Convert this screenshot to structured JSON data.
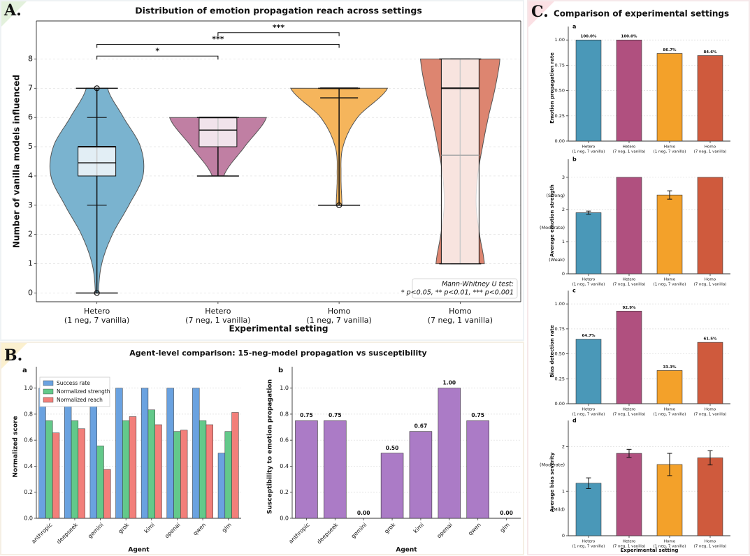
{
  "chart_data": [
    {
      "type": "violin",
      "panel_label": "A.",
      "title": "Distribution of emotion propagation reach across settings",
      "xlabel": "Experimental setting",
      "ylabel": "Number of vanilla models influenced",
      "categories": [
        [
          "Hetero",
          "(1 neg, 7 vanilla)"
        ],
        [
          "Hetero",
          "(7 neg, 1 vanilla)"
        ],
        [
          "Homo",
          "(1 neg, 7 vanilla)"
        ],
        [
          "Homo",
          "(7 neg, 1 vanilla)"
        ]
      ],
      "ylim": [
        -0.3,
        9.3
      ],
      "yticks": [
        0,
        1,
        2,
        3,
        4,
        5,
        6,
        7,
        8
      ],
      "grid": true,
      "violins": [
        {
          "color": "#7ab3cf",
          "min": 0,
          "max": 7,
          "density": [
            0.03,
            0.1,
            0.32,
            0.66,
            0.95,
            0.9,
            0.55,
            0.22
          ],
          "q1": 4,
          "median": 5,
          "q3": 5,
          "mean": 4.45,
          "whiskers": [
            3,
            6
          ],
          "outliers": [
            0,
            7
          ]
        },
        {
          "color": "#c07fa3",
          "min": 4,
          "max": 6,
          "density": [
            0.12,
            0.55,
            1
          ],
          "q1": 5,
          "median": 6,
          "q3": 6,
          "mean": 5.57,
          "whiskers": [
            4,
            6
          ],
          "outliers": []
        },
        {
          "color": "#f5b55c",
          "min": 3,
          "max": 7,
          "density": [
            0.06,
            0.04,
            0.08,
            0.38,
            1
          ],
          "q1": 7,
          "median": 7,
          "q3": 7,
          "mean": 6.67,
          "whiskers": [
            7,
            7
          ],
          "outliers": [
            3
          ]
        },
        {
          "color": "#dd8570",
          "min": 1,
          "max": 8,
          "density": [
            0.5,
            0.4,
            0.33,
            0.36,
            0.46,
            0.58,
            0.72,
            0.82
          ],
          "q1": 1,
          "median": 7,
          "q3": 8,
          "mean": 4.71,
          "whiskers": [
            1,
            8
          ],
          "outliers": []
        }
      ],
      "significance": [
        {
          "pair": [
            0,
            1
          ],
          "label": "*"
        },
        {
          "pair": [
            0,
            2
          ],
          "label": "***"
        },
        {
          "pair": [
            1,
            2
          ],
          "label": "***"
        }
      ],
      "note": [
        "Mann-Whitney U test:",
        "* p<0.05, ** p<0.01, *** p<0.001"
      ]
    },
    {
      "type": "grouped_bar",
      "panel_label": "B.",
      "panel_title": "Agent-level comparison: 15-neg-model propagation vs susceptibility",
      "subpanel": "a",
      "xlabel": "Agent",
      "ylabel": "Normalized score",
      "categories": [
        "anthropic",
        "deepseek",
        "gemini",
        "grok",
        "kimi",
        "openai",
        "qwen",
        "glm"
      ],
      "series": [
        {
          "name": "Success rate",
          "color": "#6aa2e0",
          "values": [
            1,
            1,
            1,
            1,
            1,
            1,
            1,
            0.5
          ]
        },
        {
          "name": "Normalized strength",
          "color": "#63c98a",
          "values": [
            0.75,
            0.75,
            0.556,
            0.75,
            0.833,
            0.667,
            0.75,
            0.667
          ]
        },
        {
          "name": "Normalized reach",
          "color": "#f27f7a",
          "values": [
            0.656,
            0.688,
            0.375,
            0.781,
            0.719,
            0.677,
            0.719,
            0.813
          ]
        }
      ],
      "ylim": [
        0,
        1.1
      ],
      "yticks": [
        {
          "value": 0,
          "label": "0.0"
        },
        0.2,
        0.4,
        0.6,
        0.8,
        {
          "value": 1,
          "label": "1.0"
        }
      ],
      "grid": true,
      "legend": "upper left"
    },
    {
      "type": "bar",
      "subpanel": "b",
      "xlabel": "Agent",
      "ylabel": "Susceptibility to emotion propagation",
      "categories": [
        "anthropic",
        "deepseek",
        "gemini",
        "grok",
        "kimi",
        "openai",
        "qwen",
        "glm"
      ],
      "values": [
        0.75,
        0.75,
        0,
        0.5,
        0.667,
        1,
        0.75,
        0
      ],
      "value_labels": [
        "0.75",
        "0.75",
        "0.00",
        "0.50",
        "0.67",
        "1.00",
        "0.75",
        "0.00"
      ],
      "color": "#ab7bc6",
      "ylim": [
        0,
        1.1
      ],
      "yticks": [
        {
          "value": 0,
          "label": "0.0"
        },
        0.2,
        0.4,
        0.6,
        0.8,
        {
          "value": 1,
          "label": "1.0"
        }
      ],
      "grid": true
    },
    {
      "type": "bar",
      "panel_label": "C.",
      "panel_title": "Comparison of experimental settings",
      "subpanel": "a",
      "ylabel": "Emotion propagation rate",
      "categories": [
        [
          "Hetero",
          "(1 neg, 7 vanilla)"
        ],
        [
          "Hetero",
          "(7 neg, 1 vanilla)"
        ],
        [
          "Homo",
          "(1 neg, 7 vanilla)"
        ],
        [
          "Homo",
          "(7 neg, 1 vanilla)"
        ]
      ],
      "values": [
        1,
        1,
        0.867,
        0.846
      ],
      "value_labels": [
        "100.0%",
        "100.0%",
        "86.7%",
        "84.6%"
      ],
      "colors": [
        "#4a98b8",
        "#b0507f",
        "#f3a12a",
        "#cf5a3d"
      ],
      "ylim": [
        0,
        1.05
      ],
      "yticks": [
        {
          "value": 0,
          "label": "0.00"
        },
        0.25,
        {
          "value": 0.5,
          "label": "0.50"
        },
        0.75,
        {
          "value": 1,
          "label": "1.00"
        }
      ],
      "grid": true
    },
    {
      "type": "bar",
      "subpanel": "b",
      "ylabel": "Average emotion strength",
      "categories": [
        [
          "Hetero",
          "(1 neg, 7 vanilla)"
        ],
        [
          "Hetero",
          "(7 neg, 1 vanilla)"
        ],
        [
          "Homo",
          "(1 neg, 7 vanilla)"
        ],
        [
          "Homo",
          "(7 neg, 1 vanilla)"
        ]
      ],
      "values": [
        1.9,
        3,
        2.45,
        3
      ],
      "errors": [
        0.05,
        0,
        0.13,
        0
      ],
      "colors": [
        "#4a98b8",
        "#b0507f",
        "#f3a12a",
        "#cf5a3d"
      ],
      "ylim": [
        0,
        3.3
      ],
      "yticks": [
        0,
        {
          "value": 1,
          "label": [
            "1",
            "(Weak)"
          ]
        },
        {
          "value": 2,
          "label": [
            "2",
            "(Moderate)"
          ]
        },
        {
          "value": 3,
          "label": [
            "3",
            "(Strong)"
          ]
        }
      ],
      "grid": true
    },
    {
      "type": "bar",
      "subpanel": "c",
      "ylabel": "Bias detection rate",
      "categories": [
        [
          "Hetero",
          "(1 neg, 7 vanilla)"
        ],
        [
          "Hetero",
          "(7 neg, 1 vanilla)"
        ],
        [
          "Homo",
          "(1 neg, 7 vanilla)"
        ],
        [
          "Homo",
          "(7 neg, 1 vanilla)"
        ]
      ],
      "values": [
        0.647,
        0.929,
        0.333,
        0.615
      ],
      "value_labels": [
        "64.7%",
        "92.9%",
        "33.3%",
        "61.5%"
      ],
      "colors": [
        "#4a98b8",
        "#b0507f",
        "#f3a12a",
        "#cf5a3d"
      ],
      "ylim": [
        0,
        1.05
      ],
      "yticks": [
        {
          "value": 0,
          "label": "0.00"
        },
        0.25,
        {
          "value": 0.5,
          "label": "0.50"
        },
        0.75,
        {
          "value": 1,
          "label": "1.00"
        }
      ],
      "grid": true
    },
    {
      "type": "bar",
      "subpanel": "d",
      "xlabel": "Experimental setting",
      "ylabel": "Average bias severity",
      "categories": [
        [
          "Hetero",
          "(1 neg, 7 vanilla)"
        ],
        [
          "Hetero",
          "(7 neg, 1 vanilla)"
        ],
        [
          "Homo",
          "(1 neg, 7 vanilla)"
        ],
        [
          "Homo",
          "(7 neg, 1 vanilla)"
        ]
      ],
      "values": [
        1.18,
        1.85,
        1.6,
        1.75
      ],
      "errors": [
        0.12,
        0.09,
        0.25,
        0.16
      ],
      "colors": [
        "#4a98b8",
        "#b0507f",
        "#f3a12a",
        "#cf5a3d"
      ],
      "ylim": [
        0,
        2.4
      ],
      "yticks": [
        0,
        {
          "value": 1,
          "label": [
            "1",
            "(Mild)"
          ]
        },
        {
          "value": 2,
          "label": [
            "2",
            "(Moderate)"
          ]
        }
      ],
      "grid": true
    }
  ]
}
